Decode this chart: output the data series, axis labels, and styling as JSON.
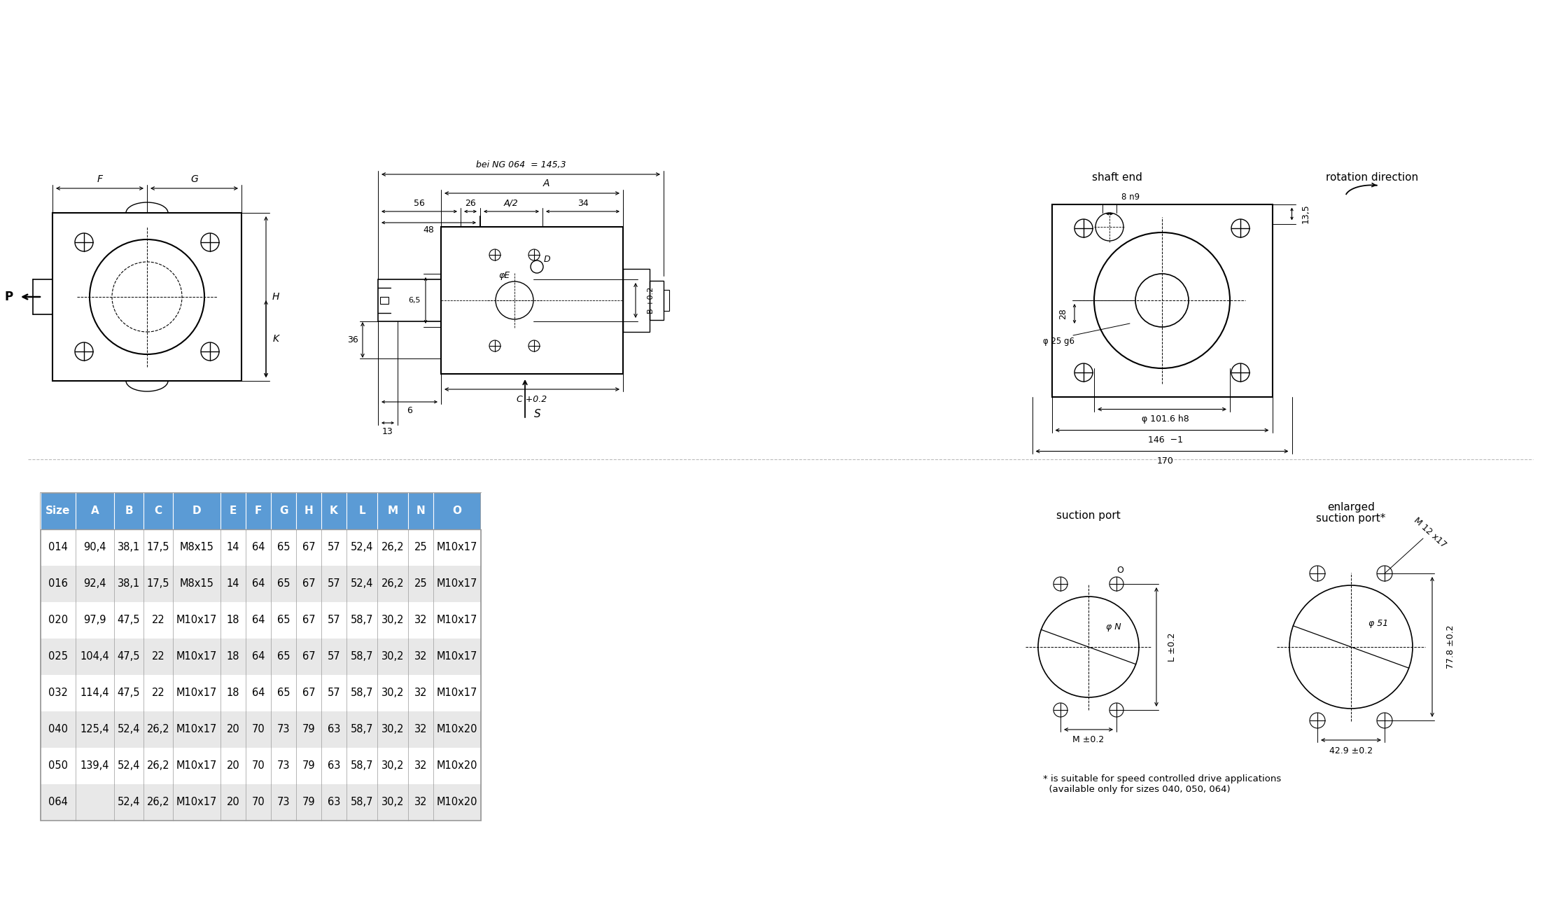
{
  "bg_color": "#ffffff",
  "header_color": "#5b9bd5",
  "header_text_color": "#ffffff",
  "row_even_color": "#e8e8e8",
  "row_odd_color": "#ffffff",
  "border_color": "#999999",
  "table_columns": [
    "Size",
    "A",
    "B",
    "C",
    "D",
    "E",
    "F",
    "G",
    "H",
    "K",
    "L",
    "M",
    "N",
    "O"
  ],
  "table_data": [
    [
      "014",
      "90,4",
      "38,1",
      "17,5",
      "M8x15",
      "14",
      "64",
      "65",
      "67",
      "57",
      "52,4",
      "26,2",
      "25",
      "M10x17"
    ],
    [
      "016",
      "92,4",
      "38,1",
      "17,5",
      "M8x15",
      "14",
      "64",
      "65",
      "67",
      "57",
      "52,4",
      "26,2",
      "25",
      "M10x17"
    ],
    [
      "020",
      "97,9",
      "47,5",
      "22",
      "M10x17",
      "18",
      "64",
      "65",
      "67",
      "57",
      "58,7",
      "30,2",
      "32",
      "M10x17"
    ],
    [
      "025",
      "104,4",
      "47,5",
      "22",
      "M10x17",
      "18",
      "64",
      "65",
      "67",
      "57",
      "58,7",
      "30,2",
      "32",
      "M10x17"
    ],
    [
      "032",
      "114,4",
      "47,5",
      "22",
      "M10x17",
      "18",
      "64",
      "65",
      "67",
      "57",
      "58,7",
      "30,2",
      "32",
      "M10x17"
    ],
    [
      "040",
      "125,4",
      "52,4",
      "26,2",
      "M10x17",
      "20",
      "70",
      "73",
      "79",
      "63",
      "58,7",
      "30,2",
      "32",
      "M10x20"
    ],
    [
      "050",
      "139,4",
      "52,4",
      "26,2",
      "M10x17",
      "20",
      "70",
      "73",
      "79",
      "63",
      "58,7",
      "30,2",
      "32",
      "M10x20"
    ],
    [
      "064",
      "",
      "52,4",
      "26,2",
      "M10x17",
      "20",
      "70",
      "73",
      "79",
      "63",
      "58,7",
      "30,2",
      "32",
      "M10x20"
    ]
  ]
}
